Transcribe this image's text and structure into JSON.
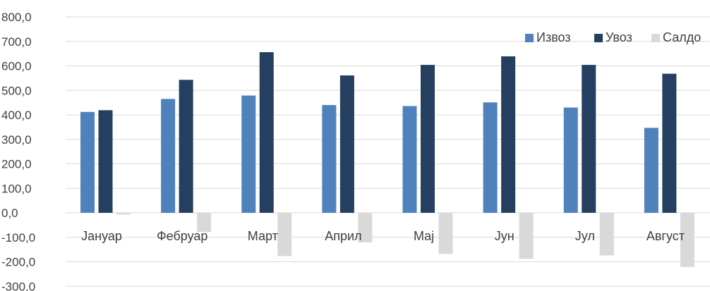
{
  "chart_data": {
    "type": "bar",
    "categories": [
      "Јануар",
      "Фебруар",
      "Март",
      "Април",
      "Мај",
      "Јун",
      "Јул",
      "Август"
    ],
    "series": [
      {
        "name": "Извоз",
        "color": "#4f81bd",
        "values": [
          412,
          465,
          479,
          440,
          436,
          451,
          430,
          347
        ]
      },
      {
        "name": "Увоз",
        "color": "#243f60",
        "values": [
          419,
          543,
          656,
          561,
          604,
          639,
          604,
          568
        ]
      },
      {
        "name": "Салдо",
        "color": "#d9d9d9",
        "values": [
          -7,
          -78,
          -177,
          -121,
          -168,
          -188,
          -174,
          -221
        ]
      }
    ],
    "y_ticks": [
      "800,0",
      "700,0",
      "600,0",
      "500,0",
      "400,0",
      "300,0",
      "200,0",
      "100,0",
      "0,0",
      "-100,0",
      "-200,0",
      "-300,0"
    ],
    "ylim": [
      -300,
      800
    ],
    "ystep": 100,
    "grid": true,
    "legend_position": "top-right"
  }
}
